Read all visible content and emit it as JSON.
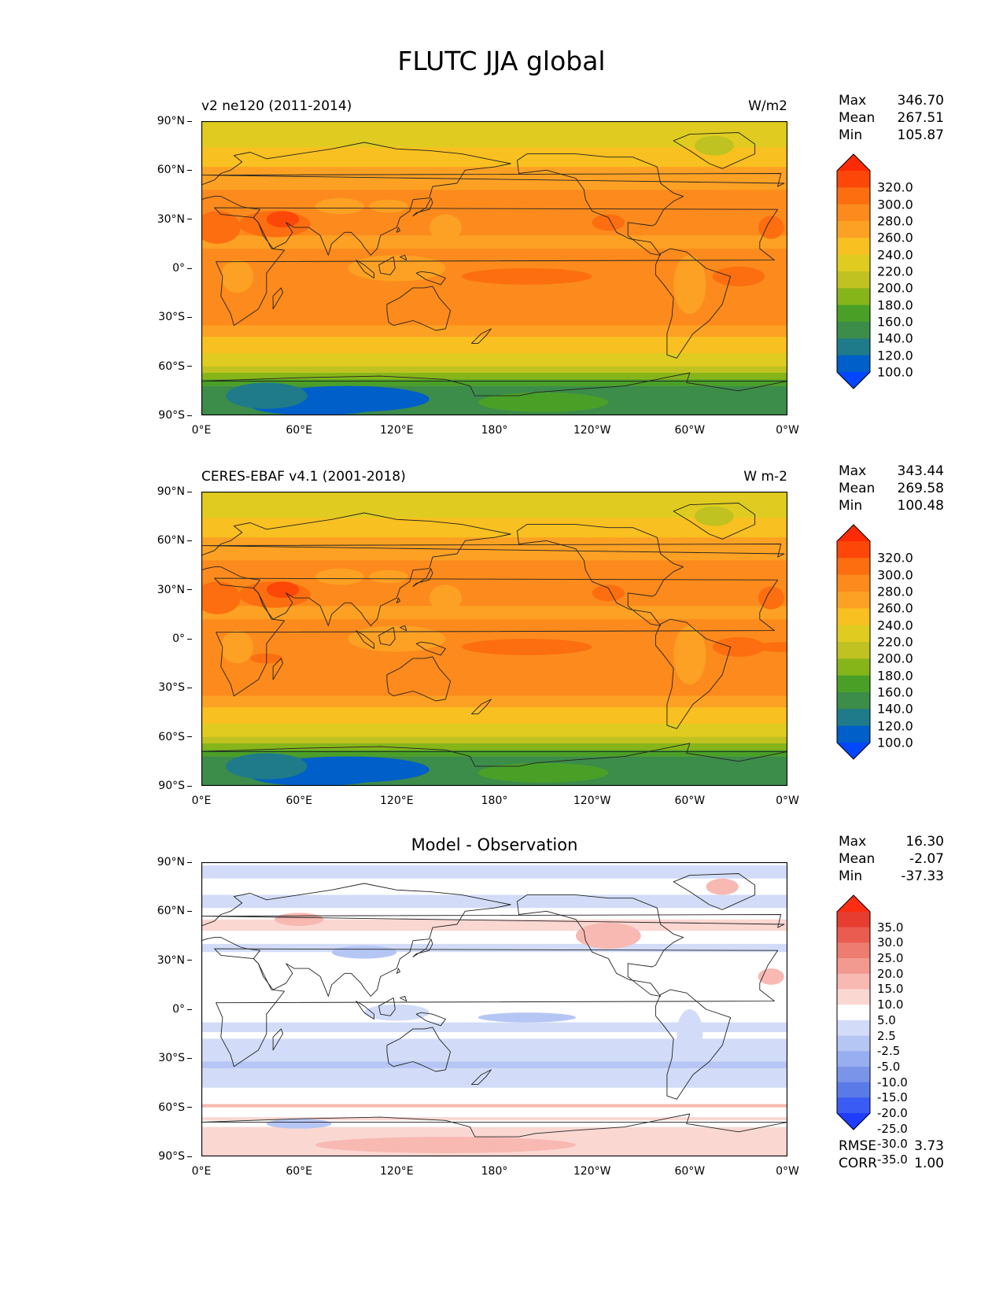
{
  "figure": {
    "title": "FLUTC JJA global"
  },
  "colors": {
    "abs": [
      "#0047ff",
      "#005fc8",
      "#1f7b8a",
      "#3c8c4a",
      "#4aa027",
      "#86b51a",
      "#bfc221",
      "#e0cc20",
      "#f8c020",
      "#fca123",
      "#fc8a1c",
      "#fc6e10",
      "#fc4708",
      "#fc2a05"
    ],
    "diff": [
      "#1f3cff",
      "#3a5cf4",
      "#5a7ae8",
      "#7a95e8",
      "#98aef0",
      "#b6c6f4",
      "#d2dcf8",
      "#ffffff",
      "#fbd7d2",
      "#f7b9b2",
      "#f39a90",
      "#ee7c70",
      "#ea5c50",
      "#e63d30",
      "#fc2d10"
    ],
    "coast": "#222222",
    "frame": "#000000"
  },
  "panels": [
    {
      "title_left": "v2 ne120 (2011-2014)",
      "title_right": "W/m2",
      "title_center": "",
      "stats": {
        "max_label": "Max",
        "max": "346.70",
        "mean_label": "Mean",
        "mean": "267.51",
        "min_label": "Min",
        "min": "105.87"
      },
      "colorbar": {
        "levels": [
          "320.0",
          "300.0",
          "280.0",
          "260.0",
          "240.0",
          "220.0",
          "200.0",
          "180.0",
          "160.0",
          "140.0",
          "120.0",
          "100.0"
        ]
      },
      "metrics": null
    },
    {
      "title_left": "CERES-EBAF v4.1 (2001-2018)",
      "title_right": "W m-2",
      "title_center": "",
      "stats": {
        "max_label": "Max",
        "max": "343.44",
        "mean_label": "Mean",
        "mean": "269.58",
        "min_label": "Min",
        "min": "100.48"
      },
      "colorbar": {
        "levels": [
          "320.0",
          "300.0",
          "280.0",
          "260.0",
          "240.0",
          "220.0",
          "200.0",
          "180.0",
          "160.0",
          "140.0",
          "120.0",
          "100.0"
        ]
      },
      "metrics": null
    },
    {
      "title_left": "",
      "title_right": "",
      "title_center": "Model - Observation",
      "stats": {
        "max_label": "Max",
        "max": "16.30",
        "mean_label": "Mean",
        "mean": "-2.07",
        "min_label": "Min",
        "min": "-37.33"
      },
      "colorbar": {
        "levels": [
          "35.0",
          "30.0",
          "25.0",
          "20.0",
          "15.0",
          "10.0",
          "5.0",
          "2.5",
          "-2.5",
          "-5.0",
          "-10.0",
          "-15.0",
          "-20.0",
          "-25.0",
          "-30.0",
          "-35.0"
        ]
      },
      "metrics": {
        "rmse_label": "RMSE",
        "rmse": "3.73",
        "corr_label": "CORR",
        "corr": "1.00"
      }
    }
  ],
  "axes": {
    "y_ticks": [
      "90°N",
      "60°N",
      "30°N",
      "0°",
      "30°S",
      "60°S",
      "90°S"
    ],
    "x_ticks": [
      "0°E",
      "60°E",
      "120°E",
      "180°",
      "120°W",
      "60°W",
      "0°W"
    ]
  },
  "chart_data": [
    {
      "type": "heatmap",
      "title": "v2 ne120 (2011-2014)",
      "units": "W/m2",
      "variable": "FLUTC",
      "season": "JJA",
      "xlabel": "",
      "ylabel": "",
      "xlim": [
        0,
        360
      ],
      "ylim": [
        -90,
        90
      ],
      "x_ticks": [
        "0°E",
        "60°E",
        "120°E",
        "180°",
        "120°W",
        "60°W",
        "0°W"
      ],
      "y_ticks": [
        "90°N",
        "60°N",
        "30°N",
        "0°",
        "30°S",
        "60°S",
        "90°S"
      ],
      "zonal_mean_profile": {
        "lat": [
          90,
          75,
          60,
          45,
          30,
          15,
          0,
          -15,
          -30,
          -45,
          -55,
          -65,
          -75,
          -85
        ],
        "value": [
          225,
          245,
          255,
          270,
          285,
          280,
          275,
          285,
          280,
          255,
          230,
          205,
          140,
          120
        ]
      },
      "colorbar_levels": [
        100,
        120,
        140,
        160,
        180,
        200,
        220,
        240,
        260,
        280,
        300,
        320
      ],
      "max": 346.7,
      "mean": 267.51,
      "min": 105.87
    },
    {
      "type": "heatmap",
      "title": "CERES-EBAF v4.1 (2001-2018)",
      "units": "W m-2",
      "variable": "FLUTC",
      "season": "JJA",
      "xlabel": "",
      "ylabel": "",
      "xlim": [
        0,
        360
      ],
      "ylim": [
        -90,
        90
      ],
      "x_ticks": [
        "0°E",
        "60°E",
        "120°E",
        "180°",
        "120°W",
        "60°W",
        "0°W"
      ],
      "y_ticks": [
        "90°N",
        "60°N",
        "30°N",
        "0°",
        "30°S",
        "60°S",
        "90°S"
      ],
      "zonal_mean_profile": {
        "lat": [
          90,
          75,
          60,
          45,
          30,
          15,
          0,
          -15,
          -30,
          -45,
          -55,
          -65,
          -75,
          -85
        ],
        "value": [
          225,
          245,
          258,
          272,
          288,
          282,
          278,
          288,
          282,
          258,
          232,
          205,
          140,
          115
        ]
      },
      "colorbar_levels": [
        100,
        120,
        140,
        160,
        180,
        200,
        220,
        240,
        260,
        280,
        300,
        320
      ],
      "max": 343.44,
      "mean": 269.58,
      "min": 100.48
    },
    {
      "type": "heatmap",
      "title": "Model - Observation",
      "variable": "FLUTC",
      "season": "JJA",
      "xlabel": "",
      "ylabel": "",
      "xlim": [
        0,
        360
      ],
      "ylim": [
        -90,
        90
      ],
      "x_ticks": [
        "0°E",
        "60°E",
        "120°E",
        "180°",
        "120°W",
        "60°W",
        "0°W"
      ],
      "y_ticks": [
        "90°N",
        "60°N",
        "30°N",
        "0°",
        "30°S",
        "60°S",
        "90°S"
      ],
      "zonal_mean_profile": {
        "lat": [
          90,
          75,
          60,
          45,
          30,
          15,
          0,
          -15,
          -30,
          -45,
          -55,
          -65,
          -75,
          -85
        ],
        "value": [
          0,
          -2,
          0,
          2,
          -1,
          -3,
          -4,
          -3,
          -5,
          -4,
          3,
          -2,
          4,
          6
        ]
      },
      "colorbar_levels": [
        -35,
        -30,
        -25,
        -20,
        -15,
        -10,
        -5,
        -2.5,
        2.5,
        5,
        10,
        15,
        20,
        25,
        30,
        35
      ],
      "max": 16.3,
      "mean": -2.07,
      "min": -37.33,
      "rmse": 3.73,
      "corr": 1.0
    }
  ]
}
